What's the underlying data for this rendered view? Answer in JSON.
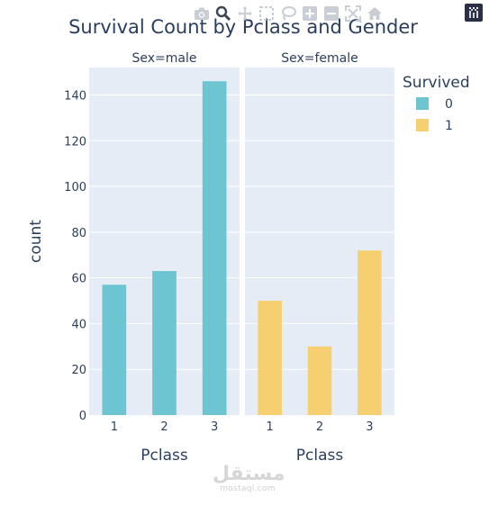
{
  "chart_data": {
    "type": "bar",
    "title": "Survival Count by Pclass and Gender",
    "ylabel": "count",
    "ylim": [
      0,
      152
    ],
    "yticks": [
      0,
      20,
      40,
      60,
      80,
      100,
      120,
      140
    ],
    "grid": true,
    "legend": {
      "title": "Survived",
      "position": "top-right",
      "entries": [
        {
          "label": "0",
          "color": "#6CC5D0"
        },
        {
          "label": "1",
          "color": "#F6CF71"
        }
      ]
    },
    "facets": [
      {
        "title": "Sex=male",
        "xlabel": "Pclass",
        "categories": [
          "1",
          "2",
          "3"
        ],
        "series": [
          {
            "name": "0",
            "color": "#6CC5D0",
            "values": [
              57,
              63,
              146
            ]
          }
        ]
      },
      {
        "title": "Sex=female",
        "xlabel": "Pclass",
        "categories": [
          "1",
          "2",
          "3"
        ],
        "series": [
          {
            "name": "1",
            "color": "#F6CF71",
            "values": [
              50,
              30,
              72
            ]
          }
        ]
      }
    ]
  },
  "colors": {
    "plot_bg": "#E5ECF6",
    "text": "#2a3f5f",
    "grid": "#ffffff"
  },
  "watermark": {
    "arabic": "مستقل",
    "latin": "mostaql.com"
  },
  "modebar": [
    "camera-icon",
    "zoom-icon",
    "pan-icon",
    "box-select-icon",
    "lasso-icon",
    "zoom-in-icon",
    "zoom-out-icon",
    "autoscale-icon",
    "home-icon",
    "plotly-logo-icon"
  ]
}
